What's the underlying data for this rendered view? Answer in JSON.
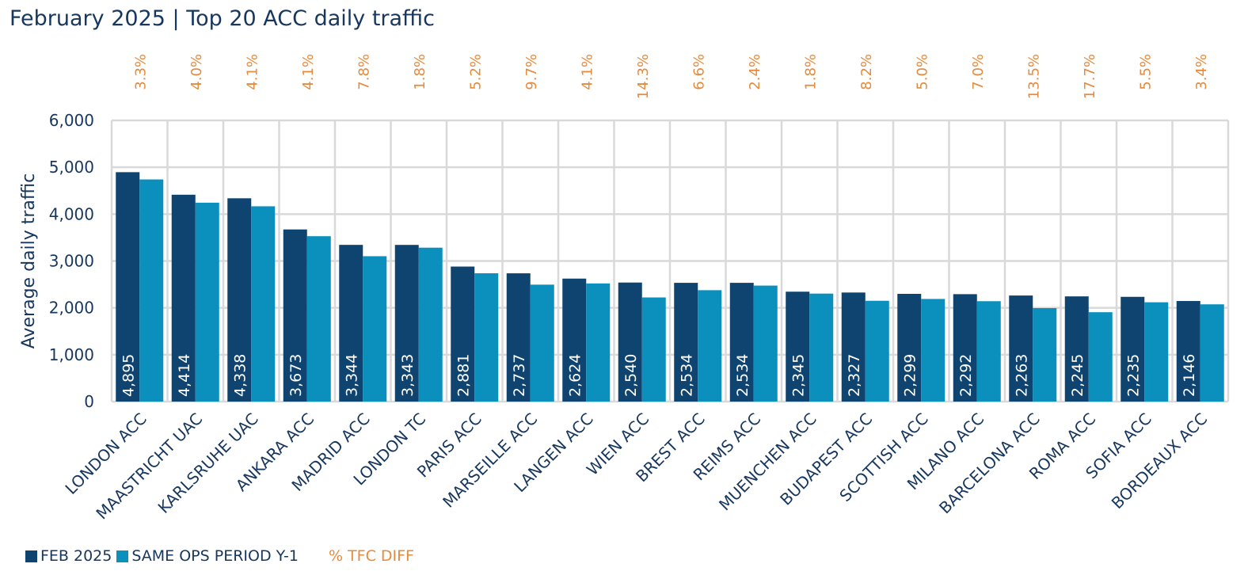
{
  "chart_data": {
    "type": "bar",
    "title": "February 2025 | Top 20 ACC daily traffic",
    "ylabel": "Average daily traffic",
    "xlabel": "",
    "ylim": [
      0,
      6000
    ],
    "yticks": [
      "0",
      "1,000",
      "2,000",
      "3,000",
      "4,000",
      "5,000",
      "6,000"
    ],
    "grid": true,
    "legend_position": "bottom-left",
    "categories": [
      "LONDON ACC",
      "MAASTRICHT UAC",
      "KARLSRUHE UAC",
      "ANKARA ACC",
      "MADRID ACC",
      "LONDON TC",
      "PARIS ACC",
      "MARSEILLE ACC",
      "LANGEN ACC",
      "WIEN ACC",
      "BREST ACC",
      "REIMS ACC",
      "MUENCHEN ACC",
      "BUDAPEST ACC",
      "SCOTTISH ACC",
      "MILANO ACC",
      "BARCELONA ACC",
      "ROMA ACC",
      "SOFIA ACC",
      "BORDEAUX ACC"
    ],
    "series": [
      {
        "name": "FEB 2025",
        "color": "#0f4470",
        "values": [
          4895,
          4414,
          4338,
          3673,
          3344,
          3343,
          2881,
          2737,
          2624,
          2540,
          2534,
          2534,
          2345,
          2327,
          2299,
          2292,
          2263,
          2245,
          2235,
          2146
        ],
        "labels": [
          "4,895",
          "4,414",
          "4,338",
          "3,673",
          "3,344",
          "3,343",
          "2,881",
          "2,737",
          "2,624",
          "2,540",
          "2,534",
          "2,534",
          "2,345",
          "2,327",
          "2,299",
          "2,292",
          "2,263",
          "2,245",
          "2,235",
          "2,146"
        ]
      },
      {
        "name": "SAME OPS PERIOD Y-1",
        "color": "#0b8fbd",
        "values": [
          4740,
          4244,
          4167,
          3529,
          3102,
          3284,
          2738,
          2495,
          2521,
          2222,
          2377,
          2475,
          2304,
          2151,
          2190,
          2142,
          1994,
          1907,
          2119,
          2075
        ]
      }
    ],
    "diff_series": {
      "name": "% TFC DIFF",
      "color": "#e68a3c",
      "labels": [
        "3.3%",
        "4.0%",
        "4.1%",
        "4.1%",
        "7.8%",
        "1.8%",
        "5.2%",
        "9.7%",
        "4.1%",
        "14.3%",
        "6.6%",
        "2.4%",
        "1.8%",
        "8.2%",
        "5.0%",
        "7.0%",
        "13.5%",
        "17.7%",
        "5.5%",
        "3.4%"
      ]
    },
    "colors": {
      "axis_text": "#17375e",
      "grid": "#d9d9d9"
    }
  }
}
